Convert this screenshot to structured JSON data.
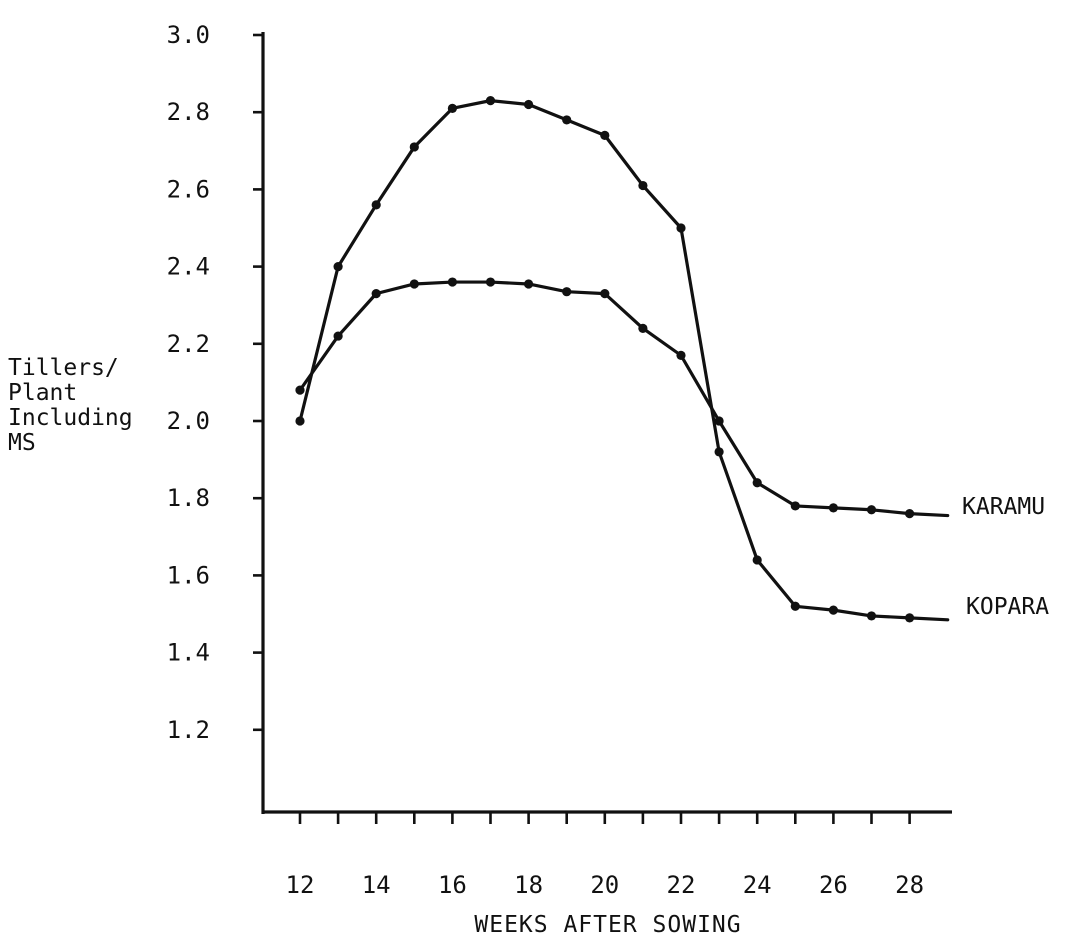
{
  "chart_data": {
    "type": "line",
    "title": "",
    "ylabel_lines": [
      "Tillers/",
      "Plant",
      "Including",
      "MS"
    ],
    "xlabel": "WEEKS AFTER SOWING",
    "ylim": [
      1.0,
      3.0
    ],
    "xlim": [
      12,
      29
    ],
    "y_ticks": [
      1.2,
      1.4,
      1.6,
      1.8,
      2.0,
      2.2,
      2.4,
      2.6,
      2.8,
      3.0
    ],
    "y_tick_labels": [
      "1.2",
      "1.4",
      "1.6",
      "1.8",
      "2.0",
      "2.2",
      "2.4",
      "2.6",
      "2.8",
      "3.0"
    ],
    "x_ticks": [
      12,
      13,
      14,
      15,
      16,
      17,
      18,
      19,
      20,
      21,
      22,
      23,
      24,
      25,
      26,
      27,
      28
    ],
    "x_tick_labels": [
      "12",
      "14",
      "16",
      "18",
      "20",
      "22",
      "24",
      "26",
      "28"
    ],
    "x_tick_label_values": [
      12,
      14,
      16,
      18,
      20,
      22,
      24,
      26,
      28
    ],
    "grid": false,
    "legend": "inline labels at line ends (right)",
    "series": [
      {
        "name": "KARAMU",
        "x": [
          12,
          13,
          14,
          15,
          16,
          17,
          18,
          19,
          20,
          21,
          22,
          23,
          24,
          25,
          26,
          27,
          28
        ],
        "y": [
          2.08,
          2.22,
          2.33,
          2.355,
          2.36,
          2.36,
          2.355,
          2.335,
          2.33,
          2.24,
          2.17,
          2.0,
          1.84,
          1.78,
          1.775,
          1.77,
          1.76
        ],
        "end_x": 29,
        "end_y": 1.755
      },
      {
        "name": "KOPARA",
        "x": [
          12,
          13,
          14,
          15,
          16,
          17,
          18,
          19,
          20,
          21,
          22,
          23,
          24,
          25,
          26,
          27,
          28
        ],
        "y": [
          2.0,
          2.4,
          2.56,
          2.71,
          2.81,
          2.83,
          2.82,
          2.78,
          2.74,
          2.61,
          2.5,
          1.92,
          1.64,
          1.52,
          1.51,
          1.495,
          1.49
        ],
        "end_x": 29,
        "end_y": 1.485
      }
    ]
  }
}
